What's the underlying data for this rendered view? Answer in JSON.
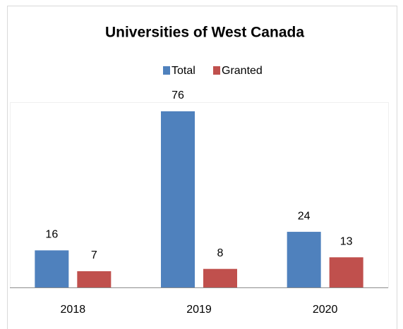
{
  "chart_data": {
    "type": "bar",
    "title": "Universities of West Canada",
    "categories": [
      "2018",
      "2019",
      "2020"
    ],
    "series": [
      {
        "name": "Total",
        "color": "#4f81bd",
        "values": [
          16,
          76,
          24
        ]
      },
      {
        "name": "Granted",
        "color": "#c0504d",
        "values": [
          7,
          8,
          13
        ]
      }
    ]
  }
}
